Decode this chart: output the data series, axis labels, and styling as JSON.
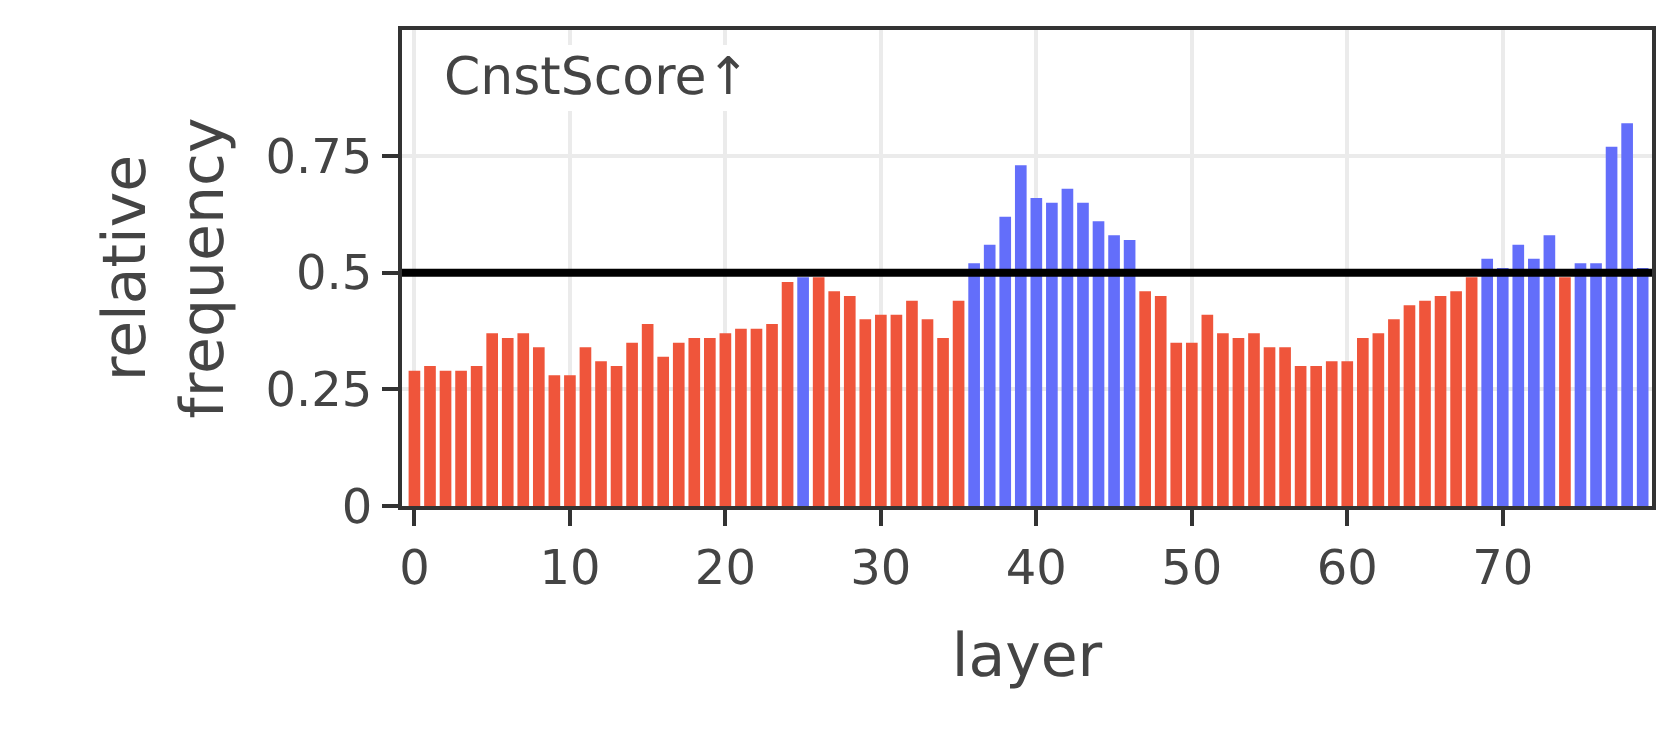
{
  "chart_data": {
    "type": "bar",
    "xlabel": "layer",
    "ylabel": "relative\nfrequency",
    "x": [
      0,
      1,
      2,
      3,
      4,
      5,
      6,
      7,
      8,
      9,
      10,
      11,
      12,
      13,
      14,
      15,
      16,
      17,
      18,
      19,
      20,
      21,
      22,
      23,
      24,
      25,
      26,
      27,
      28,
      29,
      30,
      31,
      32,
      33,
      34,
      35,
      36,
      37,
      38,
      39,
      40,
      41,
      42,
      43,
      44,
      45,
      46,
      47,
      48,
      49,
      50,
      51,
      52,
      53,
      54,
      55,
      56,
      57,
      58,
      59,
      60,
      61,
      62,
      63,
      64,
      65,
      66,
      67,
      68,
      69,
      70,
      71,
      72,
      73,
      74,
      75,
      76,
      77,
      78,
      79
    ],
    "xlim": [
      -0.8,
      79.6
    ],
    "values": [
      0.29,
      0.3,
      0.29,
      0.29,
      0.3,
      0.37,
      0.36,
      0.37,
      0.34,
      0.28,
      0.28,
      0.34,
      0.31,
      0.3,
      0.35,
      0.39,
      0.32,
      0.35,
      0.36,
      0.36,
      0.37,
      0.38,
      0.38,
      0.39,
      0.48,
      0.49,
      0.49,
      0.46,
      0.45,
      0.4,
      0.41,
      0.41,
      0.44,
      0.4,
      0.36,
      0.44,
      0.52,
      0.56,
      0.62,
      0.73,
      0.66,
      0.65,
      0.68,
      0.65,
      0.61,
      0.58,
      0.57,
      0.46,
      0.45,
      0.35,
      0.35,
      0.41,
      0.37,
      0.36,
      0.37,
      0.34,
      0.34,
      0.3,
      0.3,
      0.31,
      0.31,
      0.36,
      0.37,
      0.4,
      0.43,
      0.44,
      0.45,
      0.46,
      0.49,
      0.53,
      0.51,
      0.56,
      0.53,
      0.58,
      0.49,
      0.52,
      0.52,
      0.77,
      0.82,
      0.51
    ],
    "colors": [
      "#ef553b",
      "#ef553b",
      "#ef553b",
      "#ef553b",
      "#ef553b",
      "#ef553b",
      "#ef553b",
      "#ef553b",
      "#ef553b",
      "#ef553b",
      "#ef553b",
      "#ef553b",
      "#ef553b",
      "#ef553b",
      "#ef553b",
      "#ef553b",
      "#ef553b",
      "#ef553b",
      "#ef553b",
      "#ef553b",
      "#ef553b",
      "#ef553b",
      "#ef553b",
      "#ef553b",
      "#ef553b",
      "#636efa",
      "#ef553b",
      "#ef553b",
      "#ef553b",
      "#ef553b",
      "#ef553b",
      "#ef553b",
      "#ef553b",
      "#ef553b",
      "#ef553b",
      "#ef553b",
      "#636efa",
      "#636efa",
      "#636efa",
      "#636efa",
      "#636efa",
      "#636efa",
      "#636efa",
      "#636efa",
      "#636efa",
      "#636efa",
      "#636efa",
      "#ef553b",
      "#ef553b",
      "#ef553b",
      "#ef553b",
      "#ef553b",
      "#ef553b",
      "#ef553b",
      "#ef553b",
      "#ef553b",
      "#ef553b",
      "#ef553b",
      "#ef553b",
      "#ef553b",
      "#ef553b",
      "#ef553b",
      "#ef553b",
      "#ef553b",
      "#ef553b",
      "#ef553b",
      "#ef553b",
      "#ef553b",
      "#ef553b",
      "#636efa",
      "#636efa",
      "#636efa",
      "#636efa",
      "#636efa",
      "#ef553b",
      "#636efa",
      "#636efa",
      "#636efa",
      "#636efa",
      "#636efa"
    ],
    "ylim": [
      0,
      1.02
    ],
    "yticks": [
      0,
      0.25,
      0.5,
      0.75
    ],
    "xticks": [
      0,
      10,
      20,
      30,
      40,
      50,
      60,
      70
    ],
    "ref_lines": [
      {
        "axis": "y",
        "value": 0.5,
        "color": "#000000"
      }
    ],
    "annotations": [
      "CnstScore↑"
    ],
    "grid": true
  }
}
